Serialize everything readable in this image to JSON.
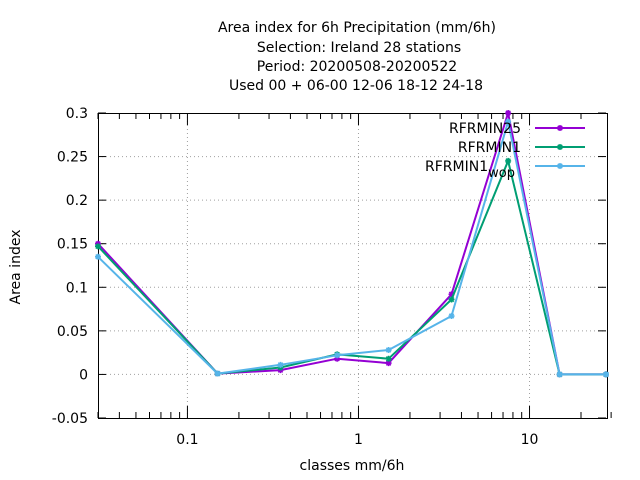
{
  "chart_data": {
    "type": "line",
    "title": [
      "Area index  for 6h Precipitation (mm/6h)",
      "Selection: Ireland      28 stations",
      "Period: 20200508-20200522",
      "Used  00 + 06-00 12-06 18-12 24-18"
    ],
    "xlabel": "classes mm/6h",
    "ylabel": "Area index",
    "x_scale": "log",
    "xlim": [
      0.03,
      28
    ],
    "ylim": [
      -0.05,
      0.3
    ],
    "x_ticks": [
      0.1,
      1,
      10
    ],
    "x_tick_labels": [
      "0.1",
      "1",
      "10"
    ],
    "y_ticks": [
      -0.05,
      0,
      0.05,
      0.1,
      0.15,
      0.2,
      0.25,
      0.3
    ],
    "y_tick_labels": [
      "-0.05",
      "0",
      "0.05",
      "0.1",
      "0.15",
      "0.2",
      "0.25",
      "0.3"
    ],
    "grid": true,
    "legend_position": "top-right",
    "x": [
      0.03,
      0.15,
      0.35,
      0.75,
      1.5,
      3.5,
      7.5,
      15,
      28
    ],
    "series": [
      {
        "name": "RFRMIN25",
        "color": "#9400d3",
        "values": [
          0.15,
          0.001,
          0.005,
          0.018,
          0.013,
          0.092,
          0.3,
          0.0,
          0.0
        ]
      },
      {
        "name": "RFRMIN1",
        "color": "#009e73",
        "values": [
          0.147,
          0.001,
          0.008,
          0.023,
          0.018,
          0.086,
          0.245,
          0.0,
          0.0
        ]
      },
      {
        "name": "RFRMIN1",
        "name_sub": "wop",
        "color": "#56b4e9",
        "values": [
          0.135,
          0.001,
          0.011,
          0.022,
          0.028,
          0.067,
          0.29,
          0.0,
          0.0
        ]
      }
    ]
  }
}
